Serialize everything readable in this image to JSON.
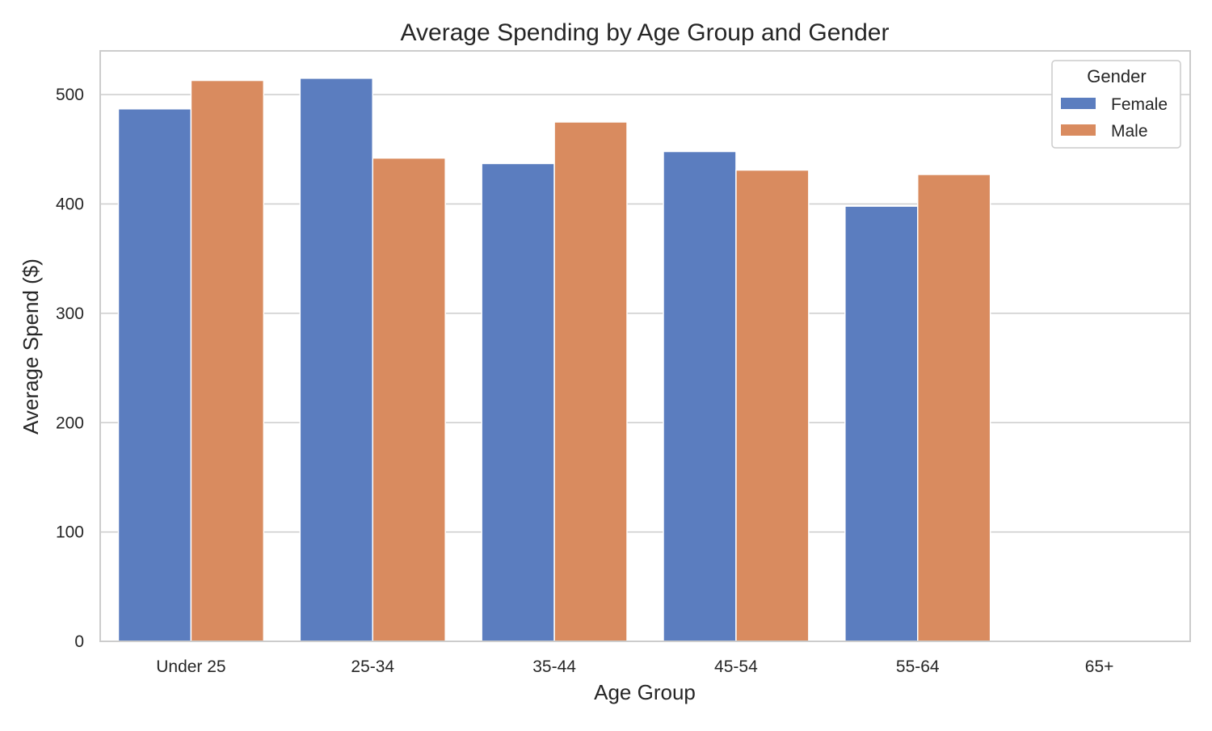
{
  "chart_data": {
    "type": "bar",
    "title": "Average Spending by Age Group and Gender",
    "xlabel": "Age Group",
    "ylabel": "Average Spend ($)",
    "categories": [
      "Under 25",
      "25-34",
      "35-44",
      "45-54",
      "55-64",
      "65+"
    ],
    "series": [
      {
        "name": "Female",
        "color": "#5b7dbf",
        "values": [
          487,
          515,
          437,
          448,
          398,
          null
        ]
      },
      {
        "name": "Male",
        "color": "#d98b5f",
        "values": [
          513,
          442,
          475,
          431,
          427,
          null
        ]
      }
    ],
    "ylim": [
      0,
      540
    ],
    "yticks": [
      0,
      100,
      200,
      300,
      400,
      500
    ],
    "grid": "horizontal",
    "legend": {
      "title": "Gender",
      "position": "top-right"
    }
  }
}
